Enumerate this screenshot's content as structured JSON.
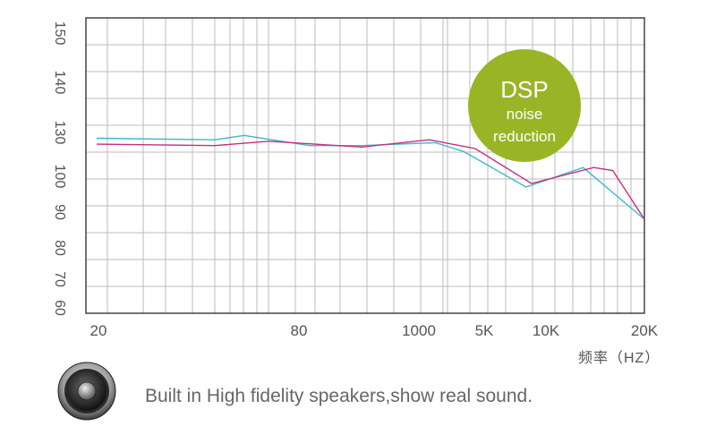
{
  "chart_data": {
    "type": "line",
    "x_tick_labels": [
      "20",
      "80",
      "1000",
      "5K",
      "10K",
      "20K"
    ],
    "y_tick_labels": [
      "150",
      "140",
      "130",
      "100",
      "90",
      "80",
      "70",
      "60"
    ],
    "x_unit": "频率（HZ）",
    "grid": true,
    "x_scale": "log",
    "badge": {
      "line1": "DSP",
      "line2": "noise",
      "line3": "reduction",
      "color": "#99b526"
    },
    "series": [
      {
        "color": "#42b7cc",
        "points": [
          [
            20,
            126
          ],
          [
            45,
            125
          ],
          [
            55,
            128
          ],
          [
            100,
            121
          ],
          [
            300,
            121
          ],
          [
            1500,
            123
          ],
          [
            3000,
            117
          ],
          [
            8000,
            97
          ],
          [
            13000,
            106
          ],
          [
            20000,
            88
          ]
        ]
      },
      {
        "color": "#c22f82",
        "points": [
          [
            20,
            122
          ],
          [
            45,
            121
          ],
          [
            65,
            124
          ],
          [
            300,
            120
          ],
          [
            1300,
            125
          ],
          [
            4000,
            119
          ],
          [
            8500,
            98
          ],
          [
            14000,
            106
          ],
          [
            16000,
            104
          ],
          [
            20000,
            88
          ]
        ]
      }
    ]
  },
  "footer": {
    "text": "Built in High fidelity speakers,show real sound."
  }
}
